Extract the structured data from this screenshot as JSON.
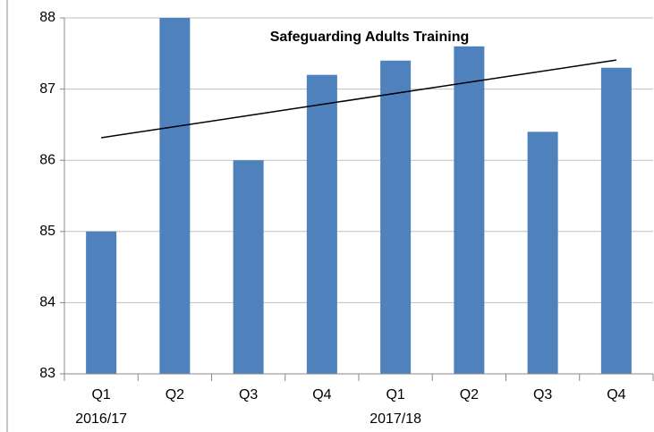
{
  "chart_data": {
    "type": "bar",
    "title": "Safeguarding Adults Training",
    "categories": [
      "Q1",
      "Q2",
      "Q3",
      "Q4",
      "Q1",
      "Q2",
      "Q3",
      "Q4"
    ],
    "category_groups": [
      "2016/17",
      "2017/18"
    ],
    "values": [
      85,
      88,
      86,
      87.2,
      87.4,
      87.6,
      86.4,
      87.3
    ],
    "color": "#4f81bd",
    "ylim": [
      83,
      88
    ],
    "yticks": [
      83,
      84,
      85,
      86,
      87,
      88
    ],
    "grid": true,
    "trendline": true
  }
}
